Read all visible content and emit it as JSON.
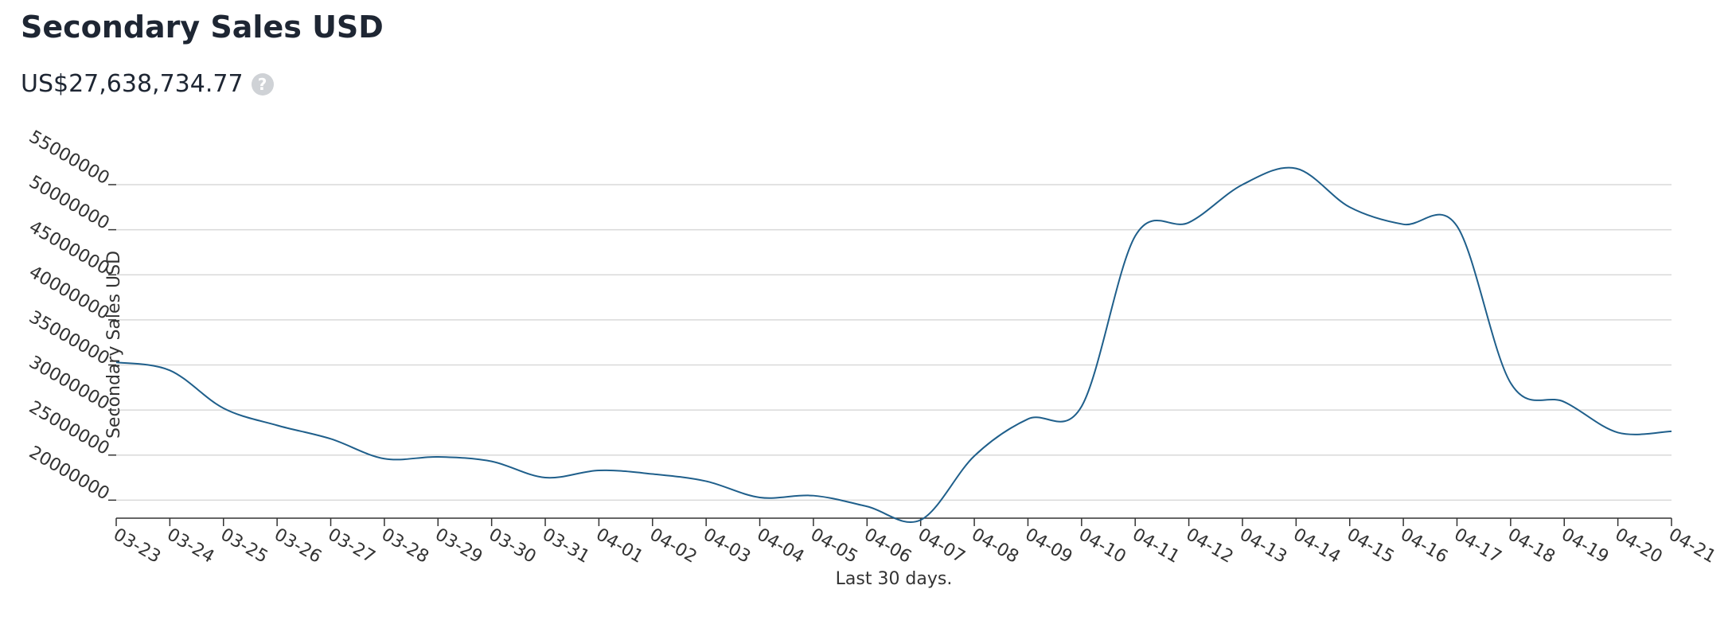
{
  "title": "Secondary Sales USD",
  "total": "US$27,638,734.77",
  "chart_data": {
    "type": "line",
    "y_label": "Secondary Sales USD",
    "x_label": "Last 30 days.",
    "categories": [
      "03-23",
      "03-24",
      "03-25",
      "03-26",
      "03-27",
      "03-28",
      "03-29",
      "03-30",
      "03-31",
      "04-01",
      "04-02",
      "04-03",
      "04-04",
      "04-05",
      "04-06",
      "04-07",
      "04-08",
      "04-09",
      "04-10",
      "04-11",
      "04-12",
      "04-13",
      "04-14",
      "04-15",
      "04-16",
      "04-17",
      "04-18",
      "04-19",
      "04-20",
      "04-21"
    ],
    "series": [
      {
        "name": "Secondary Sales USD",
        "color": "#1f5f8b",
        "values": [
          35300000,
          34400000,
          30200000,
          28300000,
          26800000,
          24600000,
          24800000,
          24300000,
          22500000,
          23300000,
          22900000,
          22100000,
          20300000,
          20500000,
          19300000,
          17800000,
          24900000,
          29000000,
          30400000,
          49300000,
          50800000,
          55000000,
          56800000,
          52500000,
          50600000,
          50400000,
          33000000,
          30900000,
          27500000,
          27638734.77
        ]
      }
    ],
    "ylim": [
      18000000,
      58000000
    ],
    "yticks": [
      20000000,
      25000000,
      30000000,
      35000000,
      40000000,
      45000000,
      50000000,
      55000000
    ],
    "grid": true
  }
}
